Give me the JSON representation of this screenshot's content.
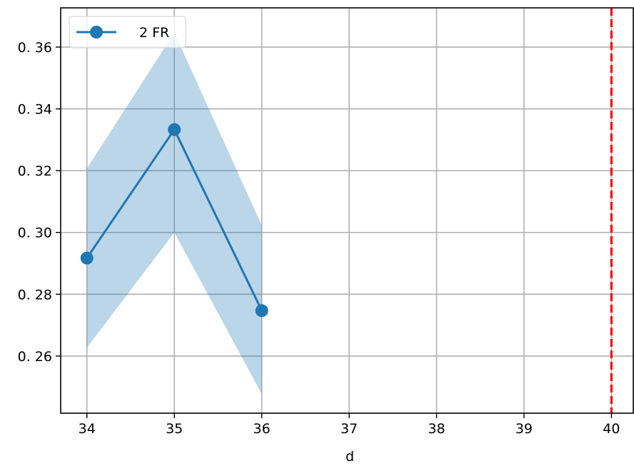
{
  "chart_data": {
    "type": "line",
    "title": "",
    "xlabel": "d",
    "ylabel": "",
    "xlim": [
      33.7,
      40.25
    ],
    "ylim": [
      0.2415,
      0.3727
    ],
    "x_ticks": [
      34,
      35,
      36,
      37,
      38,
      39,
      40
    ],
    "y_ticks": [
      0.26,
      0.28,
      0.3,
      0.32,
      0.34,
      0.36
    ],
    "y_tick_labels": [
      "0. 26",
      "0. 28",
      "0. 30",
      "0. 32",
      "0. 34",
      "0. 36"
    ],
    "grid": true,
    "legend_position": "upper-left",
    "series": [
      {
        "name": "2 FR",
        "color": "#1f77b4",
        "x": [
          34,
          35,
          36
        ],
        "y": [
          0.2917,
          0.3333,
          0.2747
        ],
        "band_lower": [
          0.2627,
          0.3,
          0.2477
        ],
        "band_upper": [
          0.3207,
          0.3647,
          0.3023
        ]
      }
    ],
    "reference_line": {
      "x": 40,
      "color": "#ff0000",
      "style": "dashed"
    },
    "colors": {
      "band": "#1f77b4",
      "grid": "#b0b0b0"
    }
  }
}
